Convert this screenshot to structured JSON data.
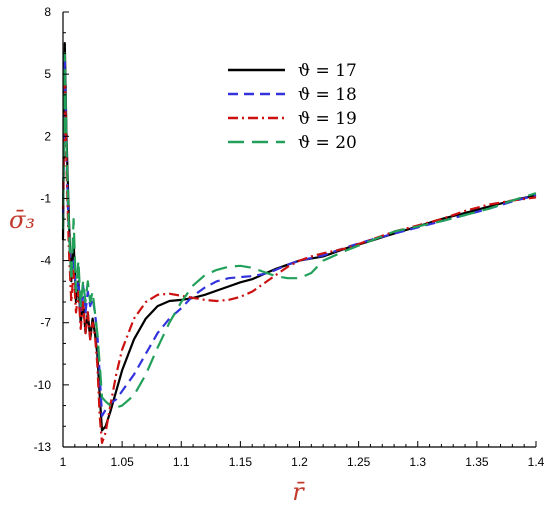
{
  "chart_data": {
    "type": "line",
    "xlabel": "r̄",
    "ylabel": "σ̄₃",
    "xlim": [
      1.0,
      1.4
    ],
    "ylim": [
      -13,
      8
    ],
    "x_ticks": [
      1,
      1.05,
      1.1,
      1.15,
      1.2,
      1.25,
      1.3,
      1.35,
      1.4
    ],
    "x_tick_labels": [
      "1",
      "1.05",
      "1.1",
      "1.15",
      "1.2",
      "1.25",
      "1.3",
      "1.35",
      "1.4"
    ],
    "y_ticks": [
      8,
      5,
      2,
      -1,
      -4,
      -7,
      -10,
      -13
    ],
    "y_tick_labels": [
      "8",
      "5",
      "2",
      "-1",
      "-4",
      "-7",
      "-10",
      "-13"
    ],
    "legend_position": "top-center",
    "series": [
      {
        "name": "ϑ = 17",
        "color": "#000000",
        "dash": "solid",
        "points": [
          [
            1.0,
            -3
          ],
          [
            1.0015,
            6.5
          ],
          [
            1.003,
            2
          ],
          [
            1.005,
            -2
          ],
          [
            1.007,
            -5
          ],
          [
            1.009,
            -3
          ],
          [
            1.011,
            -6
          ],
          [
            1.013,
            -5
          ],
          [
            1.015,
            -7
          ],
          [
            1.017,
            -6
          ],
          [
            1.019,
            -7.5
          ],
          [
            1.021,
            -6.5
          ],
          [
            1.023,
            -7.8
          ],
          [
            1.025,
            -6.8
          ],
          [
            1.027,
            -7.5
          ],
          [
            1.029,
            -8.5
          ],
          [
            1.031,
            -10.5
          ],
          [
            1.033,
            -12.2
          ],
          [
            1.036,
            -12
          ],
          [
            1.04,
            -11.3
          ],
          [
            1.045,
            -10.3
          ],
          [
            1.05,
            -9.3
          ],
          [
            1.06,
            -7.8
          ],
          [
            1.07,
            -6.8
          ],
          [
            1.08,
            -6.2
          ],
          [
            1.09,
            -5.95
          ],
          [
            1.1,
            -5.9
          ],
          [
            1.11,
            -5.8
          ],
          [
            1.12,
            -5.65
          ],
          [
            1.13,
            -5.45
          ],
          [
            1.14,
            -5.25
          ],
          [
            1.15,
            -5.05
          ],
          [
            1.16,
            -4.9
          ],
          [
            1.17,
            -4.65
          ],
          [
            1.18,
            -4.4
          ],
          [
            1.19,
            -4.2
          ],
          [
            1.2,
            -4.0
          ],
          [
            1.22,
            -3.8
          ],
          [
            1.24,
            -3.4
          ],
          [
            1.26,
            -3.05
          ],
          [
            1.28,
            -2.7
          ],
          [
            1.3,
            -2.35
          ],
          [
            1.32,
            -2.0
          ],
          [
            1.34,
            -1.7
          ],
          [
            1.36,
            -1.4
          ],
          [
            1.38,
            -1.1
          ],
          [
            1.4,
            -0.85
          ]
        ]
      },
      {
        "name": "ϑ = 18",
        "color": "#3333dd",
        "dash": "10,6",
        "points": [
          [
            1.0,
            -2
          ],
          [
            1.0015,
            5.8
          ],
          [
            1.003,
            1
          ],
          [
            1.005,
            -3
          ],
          [
            1.007,
            -4.5
          ],
          [
            1.009,
            -4
          ],
          [
            1.011,
            -5.5
          ],
          [
            1.013,
            -5
          ],
          [
            1.015,
            -6.5
          ],
          [
            1.017,
            -5.2
          ],
          [
            1.019,
            -6.5
          ],
          [
            1.021,
            -5.5
          ],
          [
            1.023,
            -6.2
          ],
          [
            1.025,
            -5.8
          ],
          [
            1.027,
            -6.5
          ],
          [
            1.029,
            -7.5
          ],
          [
            1.031,
            -9.5
          ],
          [
            1.033,
            -11.5
          ],
          [
            1.036,
            -11.2
          ],
          [
            1.04,
            -10.9
          ],
          [
            1.045,
            -10.7
          ],
          [
            1.05,
            -10.3
          ],
          [
            1.06,
            -9.5
          ],
          [
            1.07,
            -8.5
          ],
          [
            1.08,
            -7.5
          ],
          [
            1.09,
            -6.8
          ],
          [
            1.1,
            -6.3
          ],
          [
            1.11,
            -5.7
          ],
          [
            1.12,
            -5.3
          ],
          [
            1.13,
            -5.0
          ],
          [
            1.14,
            -4.85
          ],
          [
            1.15,
            -4.8
          ],
          [
            1.16,
            -4.75
          ],
          [
            1.17,
            -4.65
          ],
          [
            1.18,
            -4.45
          ],
          [
            1.19,
            -4.2
          ],
          [
            1.2,
            -4.0
          ],
          [
            1.22,
            -3.75
          ],
          [
            1.24,
            -3.35
          ],
          [
            1.26,
            -3.0
          ],
          [
            1.28,
            -2.7
          ],
          [
            1.3,
            -2.4
          ],
          [
            1.32,
            -2.1
          ],
          [
            1.34,
            -1.8
          ],
          [
            1.36,
            -1.5
          ],
          [
            1.38,
            -1.15
          ],
          [
            1.4,
            -0.85
          ]
        ]
      },
      {
        "name": "ϑ = 19",
        "color": "#cc1111",
        "dash": "10,4,2,4",
        "points": [
          [
            1.0,
            -1.5
          ],
          [
            1.0015,
            5.2
          ],
          [
            1.003,
            0.5
          ],
          [
            1.005,
            -3.5
          ],
          [
            1.007,
            -6
          ],
          [
            1.009,
            -4.5
          ],
          [
            1.011,
            -6.5
          ],
          [
            1.013,
            -5.5
          ],
          [
            1.015,
            -7.3
          ],
          [
            1.017,
            -6
          ],
          [
            1.019,
            -7.5
          ],
          [
            1.021,
            -6.5
          ],
          [
            1.023,
            -7.8
          ],
          [
            1.025,
            -7
          ],
          [
            1.027,
            -7.6
          ],
          [
            1.029,
            -9
          ],
          [
            1.031,
            -11.5
          ],
          [
            1.033,
            -12.8
          ],
          [
            1.036,
            -12.3
          ],
          [
            1.04,
            -11
          ],
          [
            1.045,
            -9.5
          ],
          [
            1.05,
            -8.3
          ],
          [
            1.06,
            -6.8
          ],
          [
            1.07,
            -6.0
          ],
          [
            1.08,
            -5.65
          ],
          [
            1.09,
            -5.6
          ],
          [
            1.1,
            -5.7
          ],
          [
            1.11,
            -5.8
          ],
          [
            1.12,
            -5.9
          ],
          [
            1.13,
            -5.95
          ],
          [
            1.14,
            -5.9
          ],
          [
            1.15,
            -5.75
          ],
          [
            1.16,
            -5.5
          ],
          [
            1.17,
            -5.1
          ],
          [
            1.18,
            -4.7
          ],
          [
            1.19,
            -4.3
          ],
          [
            1.2,
            -4.0
          ],
          [
            1.21,
            -3.8
          ],
          [
            1.22,
            -3.65
          ],
          [
            1.24,
            -3.4
          ],
          [
            1.26,
            -3.0
          ],
          [
            1.28,
            -2.6
          ],
          [
            1.3,
            -2.3
          ],
          [
            1.32,
            -2.0
          ],
          [
            1.34,
            -1.6
          ],
          [
            1.36,
            -1.3
          ],
          [
            1.38,
            -1.1
          ],
          [
            1.4,
            -0.95
          ]
        ]
      },
      {
        "name": "ϑ = 20",
        "color": "#22a05a",
        "dash": "16,8",
        "points": [
          [
            1.0,
            -2.5
          ],
          [
            1.0015,
            6
          ],
          [
            1.003,
            1.5
          ],
          [
            1.005,
            -2.5
          ],
          [
            1.007,
            -5
          ],
          [
            1.009,
            -2
          ],
          [
            1.011,
            -5.5
          ],
          [
            1.013,
            -4
          ],
          [
            1.015,
            -6.2
          ],
          [
            1.017,
            -5
          ],
          [
            1.019,
            -6
          ],
          [
            1.021,
            -5
          ],
          [
            1.023,
            -6
          ],
          [
            1.025,
            -5.5
          ],
          [
            1.027,
            -6.5
          ],
          [
            1.029,
            -7.5
          ],
          [
            1.031,
            -9
          ],
          [
            1.033,
            -10.6
          ],
          [
            1.036,
            -10.8
          ],
          [
            1.04,
            -11.0
          ],
          [
            1.045,
            -11.1
          ],
          [
            1.05,
            -11.0
          ],
          [
            1.06,
            -10.5
          ],
          [
            1.07,
            -9.5
          ],
          [
            1.08,
            -8.2
          ],
          [
            1.09,
            -7.0
          ],
          [
            1.1,
            -6.0
          ],
          [
            1.11,
            -5.2
          ],
          [
            1.12,
            -4.7
          ],
          [
            1.13,
            -4.45
          ],
          [
            1.14,
            -4.3
          ],
          [
            1.15,
            -4.25
          ],
          [
            1.16,
            -4.35
          ],
          [
            1.17,
            -4.55
          ],
          [
            1.18,
            -4.75
          ],
          [
            1.19,
            -4.85
          ],
          [
            1.2,
            -4.85
          ],
          [
            1.21,
            -4.6
          ],
          [
            1.22,
            -4.0
          ],
          [
            1.24,
            -3.5
          ],
          [
            1.26,
            -3.05
          ],
          [
            1.28,
            -2.6
          ],
          [
            1.3,
            -2.35
          ],
          [
            1.32,
            -2.1
          ],
          [
            1.34,
            -1.8
          ],
          [
            1.36,
            -1.5
          ],
          [
            1.38,
            -1.1
          ],
          [
            1.4,
            -0.75
          ]
        ]
      }
    ]
  }
}
